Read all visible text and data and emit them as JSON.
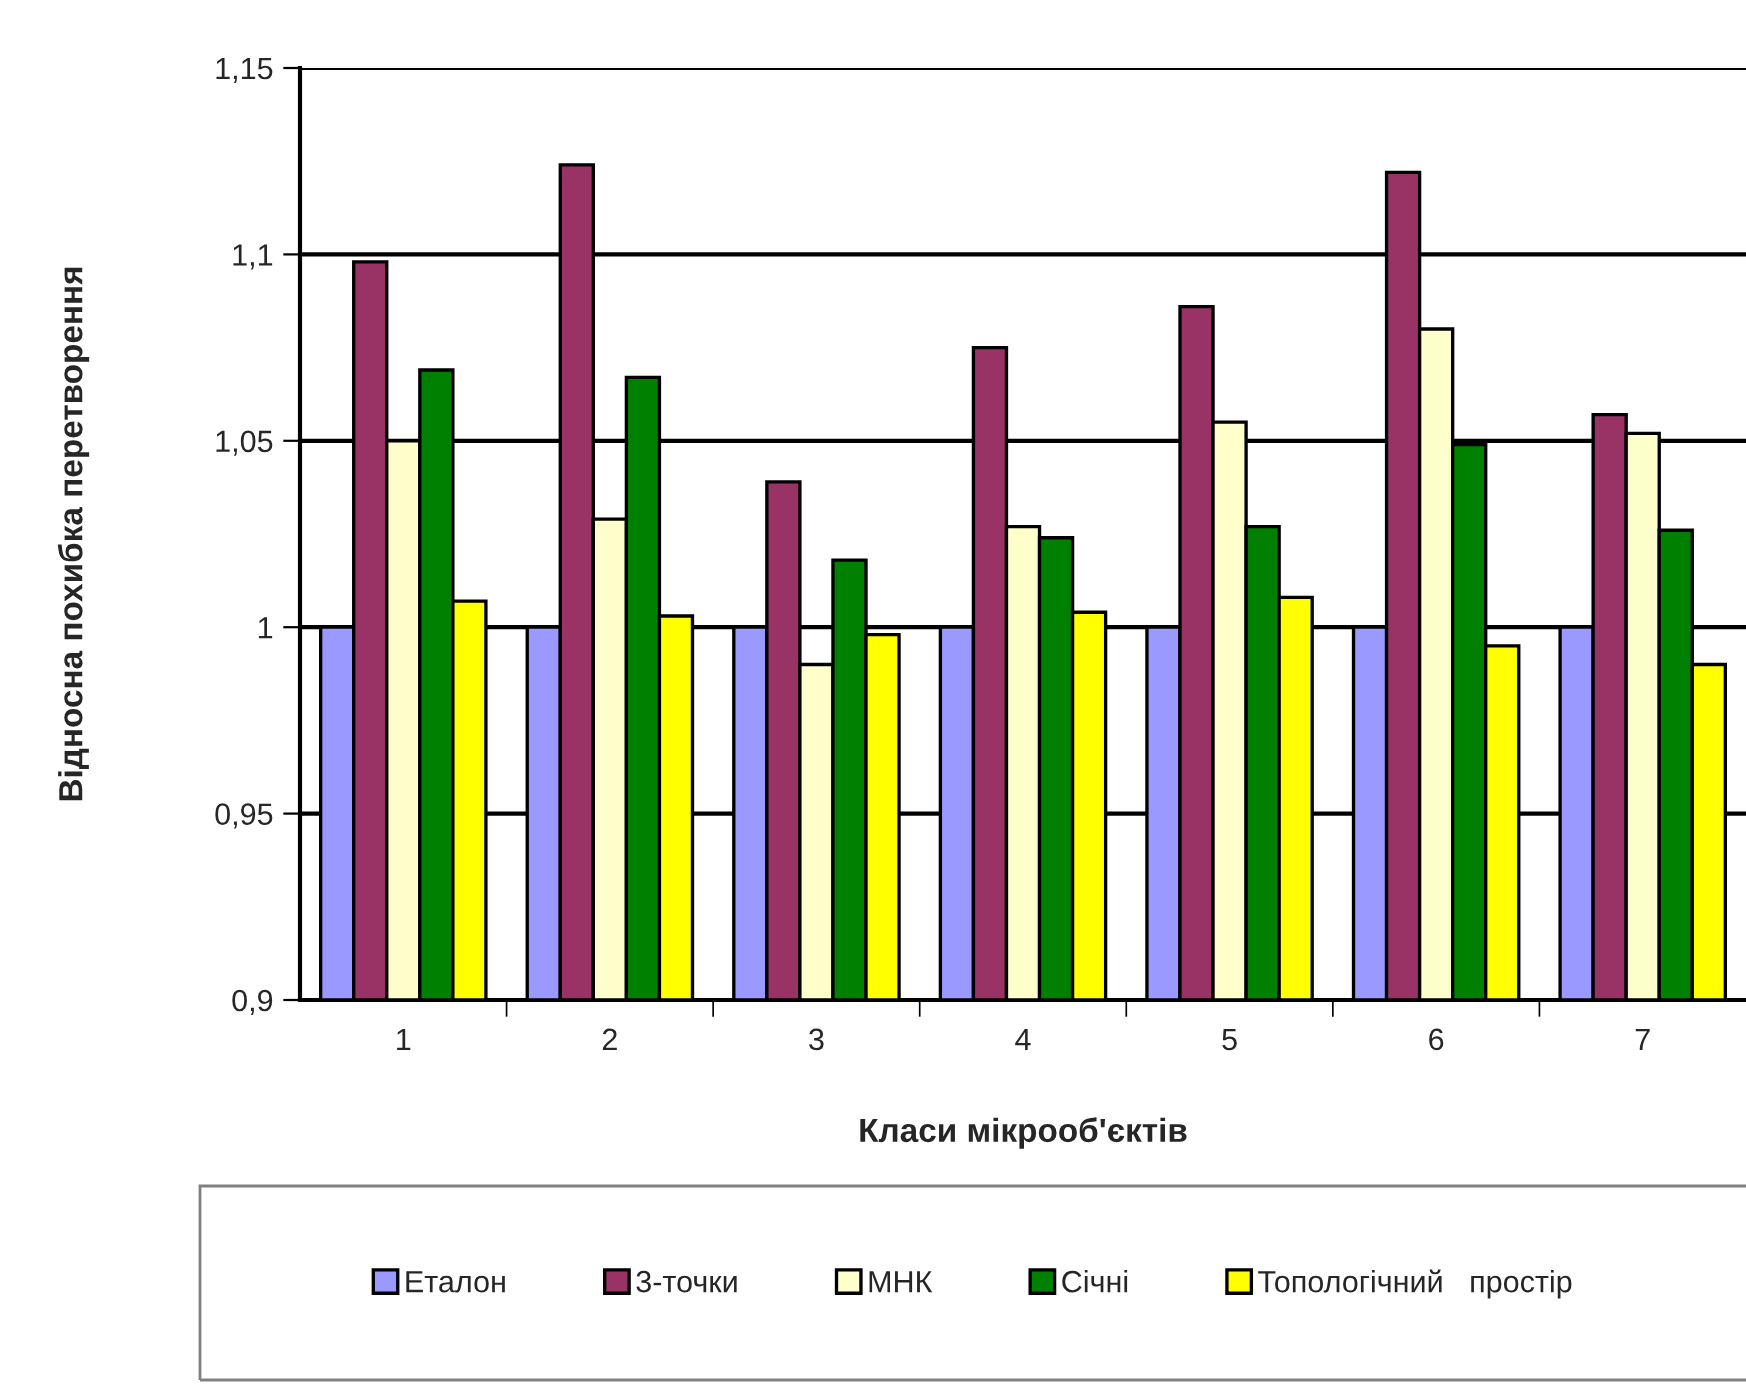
{
  "chart_data": {
    "type": "bar",
    "xlabel": "Класи мікрооб'єктів",
    "ylabel": "Відносна похибка перетворення",
    "categories": [
      "1",
      "2",
      "3",
      "4",
      "5",
      "6",
      "7"
    ],
    "series": [
      {
        "name": "Еталон",
        "color": "#9999ff",
        "values": [
          1.0,
          1.0,
          1.0,
          1.0,
          1.0,
          1.0,
          1.0
        ]
      },
      {
        "name": "3-точки",
        "color": "#993366",
        "values": [
          1.098,
          1.124,
          1.039,
          1.075,
          1.086,
          1.122,
          1.057
        ]
      },
      {
        "name": "МНК",
        "color": "#ffffcc",
        "values": [
          1.05,
          1.029,
          0.99,
          1.027,
          1.055,
          1.08,
          1.052
        ]
      },
      {
        "name": "Січні",
        "color": "#008000",
        "values": [
          1.069,
          1.067,
          1.018,
          1.024,
          1.027,
          1.049,
          1.026
        ]
      },
      {
        "name": "Топологічний   простір",
        "color": "#ffff00",
        "values": [
          1.007,
          1.003,
          0.998,
          1.004,
          1.008,
          0.995,
          0.99
        ]
      }
    ],
    "ylim": [
      0.9,
      1.15
    ],
    "yticks": [
      {
        "value": 0.9,
        "label": "0,9"
      },
      {
        "value": 0.95,
        "label": "0,95"
      },
      {
        "value": 1.0,
        "label": "1"
      },
      {
        "value": 1.05,
        "label": "1,05"
      },
      {
        "value": 1.1,
        "label": "1,1"
      },
      {
        "value": 1.15,
        "label": "1,15"
      }
    ],
    "grid": "y",
    "legend": "bottom"
  }
}
